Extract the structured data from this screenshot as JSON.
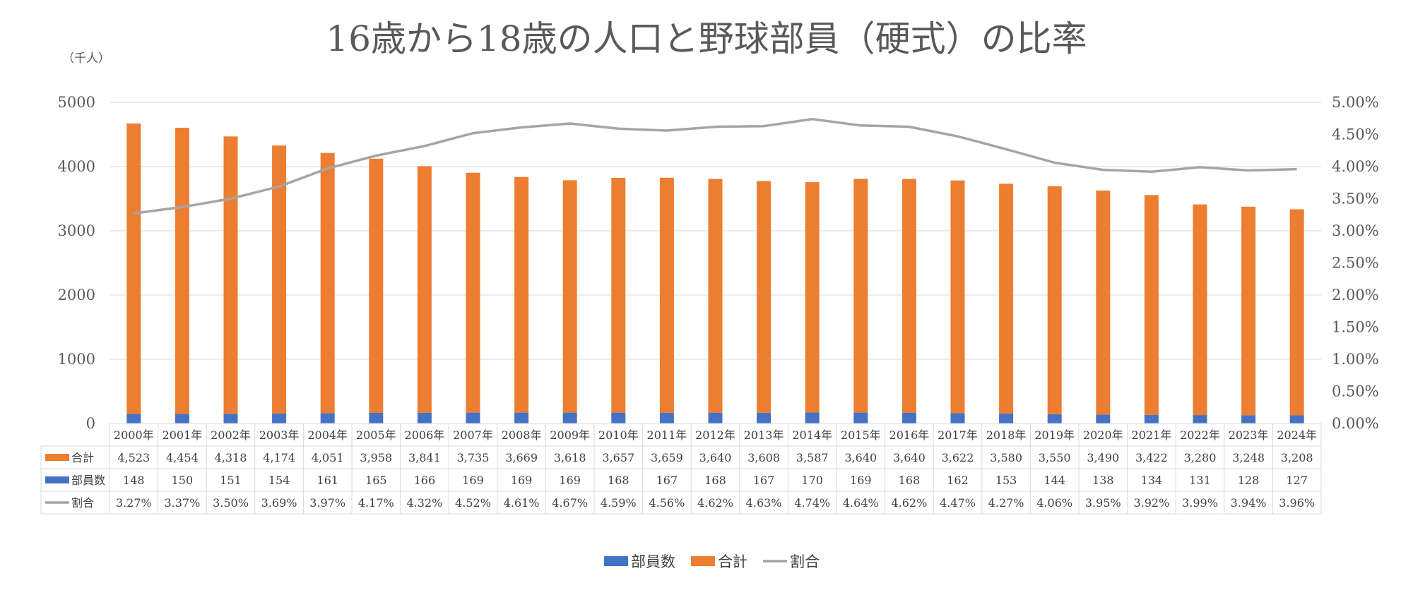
{
  "chart_data": {
    "type": "bar",
    "title": "16歳から18歳の人口と野球部員（硬式）の比率",
    "unit_label": "（千人）",
    "categories": [
      "2000年",
      "2001年",
      "2002年",
      "2003年",
      "2004年",
      "2005年",
      "2006年",
      "2007年",
      "2008年",
      "2009年",
      "2010年",
      "2011年",
      "2012年",
      "2013年",
      "2014年",
      "2015年",
      "2016年",
      "2017年",
      "2018年",
      "2019年",
      "2020年",
      "2021年",
      "2022年",
      "2023年",
      "2024年"
    ],
    "series": [
      {
        "name": "部員数",
        "kind": "bar",
        "axis": "left",
        "color": "#4472C4",
        "values": [
          148,
          150,
          151,
          154,
          161,
          165,
          166,
          169,
          169,
          169,
          168,
          167,
          168,
          167,
          170,
          169,
          168,
          162,
          153,
          144,
          138,
          134,
          131,
          128,
          127
        ],
        "labels": [
          "148",
          "150",
          "151",
          "154",
          "161",
          "165",
          "166",
          "169",
          "169",
          "169",
          "168",
          "167",
          "168",
          "167",
          "170",
          "169",
          "168",
          "162",
          "153",
          "144",
          "138",
          "134",
          "131",
          "128",
          "127"
        ]
      },
      {
        "name": "合計",
        "kind": "bar",
        "axis": "left",
        "color": "#ED7D31",
        "values": [
          4523,
          4454,
          4318,
          4174,
          4051,
          3958,
          3841,
          3735,
          3669,
          3618,
          3657,
          3659,
          3640,
          3608,
          3587,
          3640,
          3640,
          3622,
          3580,
          3550,
          3490,
          3422,
          3280,
          3248,
          3208
        ],
        "labels": [
          "4,523",
          "4,454",
          "4,318",
          "4,174",
          "4,051",
          "3,958",
          "3,841",
          "3,735",
          "3,669",
          "3,618",
          "3,657",
          "3,659",
          "3,640",
          "3,608",
          "3,587",
          "3,640",
          "3,640",
          "3,622",
          "3,580",
          "3,550",
          "3,490",
          "3,422",
          "3,280",
          "3,248",
          "3,208"
        ]
      },
      {
        "name": "割合",
        "kind": "line",
        "axis": "right",
        "color": "#A5A5A5",
        "values": [
          3.27,
          3.37,
          3.5,
          3.69,
          3.97,
          4.17,
          4.32,
          4.52,
          4.61,
          4.67,
          4.59,
          4.56,
          4.62,
          4.63,
          4.74,
          4.64,
          4.62,
          4.47,
          4.27,
          4.06,
          3.95,
          3.92,
          3.99,
          3.94,
          3.96
        ],
        "labels": [
          "3.27%",
          "3.37%",
          "3.50%",
          "3.69%",
          "3.97%",
          "4.17%",
          "4.32%",
          "4.52%",
          "4.61%",
          "4.67%",
          "4.59%",
          "4.56%",
          "4.62%",
          "4.63%",
          "4.74%",
          "4.64%",
          "4.62%",
          "4.47%",
          "4.27%",
          "4.06%",
          "3.95%",
          "3.92%",
          "3.99%",
          "3.94%",
          "3.96%"
        ]
      }
    ],
    "y_left": {
      "min": 0,
      "max": 5000,
      "ticks": [
        "0",
        "1000",
        "2000",
        "3000",
        "4000",
        "5000"
      ]
    },
    "y_right": {
      "min": 0,
      "max": 5,
      "ticks": [
        "0.00%",
        "0.50%",
        "1.00%",
        "1.50%",
        "2.00%",
        "2.50%",
        "3.00%",
        "3.50%",
        "4.00%",
        "4.50%",
        "5.00%"
      ]
    },
    "grid": true,
    "data_table": true,
    "table_row_order": [
      "合計",
      "部員数",
      "割合"
    ],
    "legend_order": [
      "部員数",
      "合計",
      "割合"
    ],
    "legend_position": "bottom",
    "bar_mode": "stacked"
  }
}
